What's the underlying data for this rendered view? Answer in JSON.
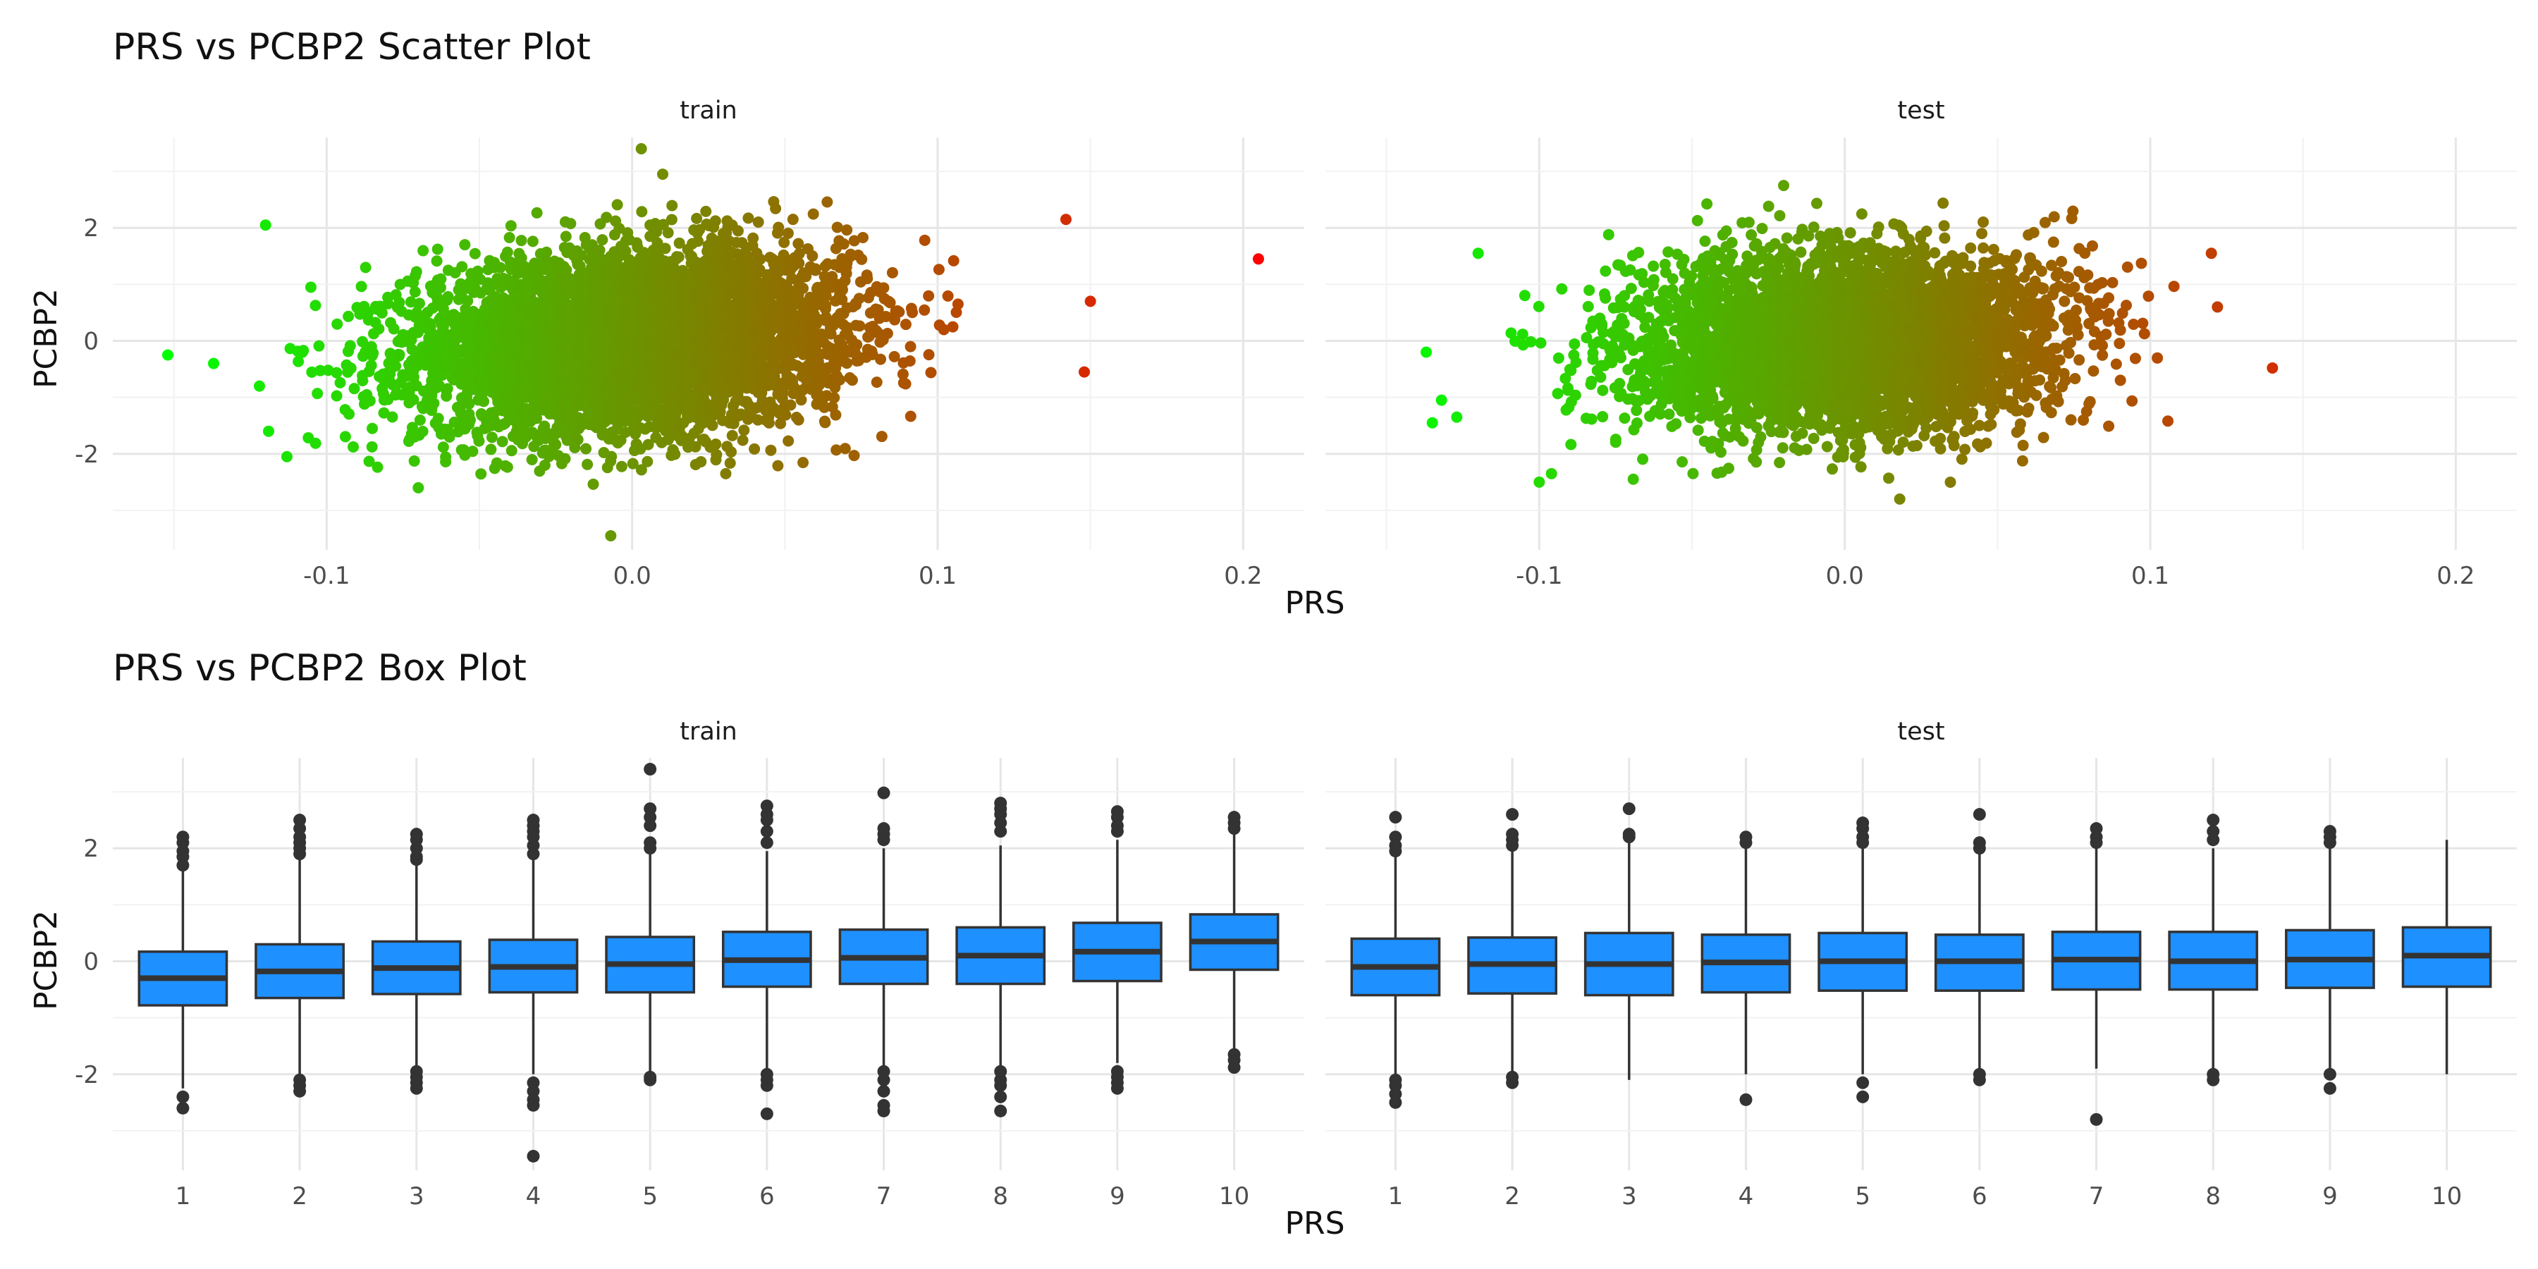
{
  "chart_data": [
    {
      "type": "scatter",
      "title": "PRS vs PCBP2 Scatter Plot",
      "xlabel": "PRS",
      "ylabel": "PCBP2",
      "xlim": [
        -0.17,
        0.22
      ],
      "ylim": [
        -3.7,
        3.6
      ],
      "x_ticks": [
        -0.1,
        0.0,
        0.1,
        0.2
      ],
      "x_tick_labels": [
        "-0.1",
        "0.0",
        "0.1",
        "0.2"
      ],
      "y_ticks": [
        -2,
        0,
        2
      ],
      "y_tick_labels": [
        "-2",
        "0",
        "2"
      ],
      "grid": true,
      "color_gradient": [
        "#00ff00",
        "#ff0000"
      ],
      "panels": [
        {
          "name": "train",
          "cloud": {
            "x_mean": 0.0,
            "x_sd": 0.035,
            "y_mean": 0.0,
            "y_sd": 0.8,
            "correlation": 0.15
          },
          "extreme_points": [
            {
              "x": -0.152,
              "y": -0.25
            },
            {
              "x": -0.137,
              "y": -0.4
            },
            {
              "x": -0.12,
              "y": 2.05
            },
            {
              "x": -0.122,
              "y": -0.8
            },
            {
              "x": -0.119,
              "y": -1.6
            },
            {
              "x": -0.113,
              "y": -2.05
            },
            {
              "x": 0.205,
              "y": 1.45
            },
            {
              "x": 0.15,
              "y": 0.7
            },
            {
              "x": 0.148,
              "y": -0.55
            },
            {
              "x": 0.142,
              "y": 2.15
            },
            {
              "x": 0.003,
              "y": 3.4
            },
            {
              "x": -0.007,
              "y": -3.45
            },
            {
              "x": 0.01,
              "y": 2.95
            },
            {
              "x": -0.07,
              "y": -2.6
            }
          ]
        },
        {
          "name": "test",
          "cloud": {
            "x_mean": 0.0,
            "x_sd": 0.035,
            "y_mean": 0.0,
            "y_sd": 0.8,
            "correlation": 0.05
          },
          "extreme_points": [
            {
              "x": -0.137,
              "y": -0.2
            },
            {
              "x": -0.12,
              "y": 1.55
            },
            {
              "x": -0.132,
              "y": -1.05
            },
            {
              "x": -0.135,
              "y": -1.45
            },
            {
              "x": -0.127,
              "y": -1.35
            },
            {
              "x": -0.1,
              "y": -2.5
            },
            {
              "x": -0.096,
              "y": -2.35
            },
            {
              "x": 0.14,
              "y": -0.48
            },
            {
              "x": 0.12,
              "y": 1.55
            },
            {
              "x": 0.122,
              "y": 0.6
            },
            {
              "x": 0.018,
              "y": -2.8
            },
            {
              "x": -0.02,
              "y": 2.75
            }
          ]
        }
      ]
    },
    {
      "type": "box",
      "title": "PRS vs PCBP2 Box Plot",
      "xlabel": "PRS",
      "ylabel": "PCBP2",
      "categories": [
        "1",
        "2",
        "3",
        "4",
        "5",
        "6",
        "7",
        "8",
        "9",
        "10"
      ],
      "ylim": [
        -3.7,
        3.6
      ],
      "y_ticks": [
        -2,
        0,
        2
      ],
      "y_tick_labels": [
        "-2",
        "0",
        "2"
      ],
      "grid": true,
      "box_fill": "#1e90ff",
      "line_color": "#333333",
      "panels": [
        {
          "name": "train",
          "boxes": [
            {
              "q1": -0.78,
              "median": -0.3,
              "q3": 0.17,
              "lower": -2.25,
              "upper": 1.6,
              "outliers": [
                2.2,
                2.1,
                1.95,
                1.85,
                1.7,
                -2.4,
                -2.6
              ]
            },
            {
              "q1": -0.65,
              "median": -0.18,
              "q3": 0.3,
              "lower": -2.0,
              "upper": 1.8,
              "outliers": [
                2.5,
                2.35,
                2.2,
                2.1,
                2.0,
                1.9,
                -2.1,
                -2.2,
                -2.3
              ]
            },
            {
              "q1": -0.58,
              "median": -0.12,
              "q3": 0.35,
              "lower": -1.9,
              "upper": 1.75,
              "outliers": [
                2.25,
                2.15,
                2.0,
                1.85,
                1.8,
                -1.95,
                -2.05,
                -2.15,
                -2.25
              ]
            },
            {
              "q1": -0.55,
              "median": -0.1,
              "q3": 0.38,
              "lower": -2.0,
              "upper": 1.8,
              "outliers": [
                2.5,
                2.4,
                2.3,
                2.2,
                2.05,
                1.9,
                -2.15,
                -2.3,
                -2.45,
                -2.55,
                -3.45
              ]
            },
            {
              "q1": -0.55,
              "median": -0.05,
              "q3": 0.43,
              "lower": -2.0,
              "upper": 1.9,
              "outliers": [
                3.4,
                2.7,
                2.55,
                2.4,
                2.1,
                2.0,
                -2.05,
                -2.1
              ]
            },
            {
              "q1": -0.45,
              "median": 0.02,
              "q3": 0.52,
              "lower": -1.9,
              "upper": 1.95,
              "outliers": [
                2.75,
                2.6,
                2.5,
                2.3,
                2.1,
                -2.0,
                -2.1,
                -2.2,
                -2.7
              ]
            },
            {
              "q1": -0.4,
              "median": 0.06,
              "q3": 0.56,
              "lower": -1.85,
              "upper": 2.0,
              "outliers": [
                2.98,
                2.35,
                2.25,
                2.15,
                -1.95,
                -2.1,
                -2.3,
                -2.55,
                -2.65
              ]
            },
            {
              "q1": -0.4,
              "median": 0.1,
              "q3": 0.6,
              "lower": -1.85,
              "upper": 2.05,
              "outliers": [
                2.8,
                2.7,
                2.6,
                2.45,
                2.3,
                -1.95,
                -2.1,
                -2.2,
                -2.4,
                -2.65
              ]
            },
            {
              "q1": -0.35,
              "median": 0.17,
              "q3": 0.68,
              "lower": -1.8,
              "upper": 2.15,
              "outliers": [
                2.65,
                2.55,
                2.4,
                2.3,
                -1.95,
                -2.05,
                -2.15,
                -2.25
              ]
            },
            {
              "q1": -0.15,
              "median": 0.35,
              "q3": 0.83,
              "lower": -1.55,
              "upper": 2.3,
              "outliers": [
                2.55,
                2.45,
                2.35,
                -1.65,
                -1.75,
                -1.88
              ]
            }
          ]
        },
        {
          "name": "test",
          "boxes": [
            {
              "q1": -0.6,
              "median": -0.1,
              "q3": 0.4,
              "lower": -2.0,
              "upper": 1.9,
              "outliers": [
                2.55,
                2.2,
                2.05,
                1.95,
                -2.1,
                -2.2,
                -2.35,
                -2.5
              ]
            },
            {
              "q1": -0.57,
              "median": -0.05,
              "q3": 0.42,
              "lower": -1.95,
              "upper": 1.95,
              "outliers": [
                2.6,
                2.25,
                2.15,
                2.05,
                -2.05,
                -2.15
              ]
            },
            {
              "q1": -0.6,
              "median": -0.05,
              "q3": 0.5,
              "lower": -2.1,
              "upper": 2.1,
              "outliers": [
                2.7,
                2.25,
                2.2
              ]
            },
            {
              "q1": -0.55,
              "median": -0.02,
              "q3": 0.47,
              "lower": -2.0,
              "upper": 2.05,
              "outliers": [
                2.2,
                2.1,
                -2.45
              ]
            },
            {
              "q1": -0.52,
              "median": 0.0,
              "q3": 0.5,
              "lower": -2.0,
              "upper": 2.0,
              "outliers": [
                2.45,
                2.35,
                2.2,
                2.1,
                -2.15,
                -2.4
              ]
            },
            {
              "q1": -0.52,
              "median": 0.0,
              "q3": 0.47,
              "lower": -1.95,
              "upper": 1.95,
              "outliers": [
                2.6,
                2.1,
                2.0,
                -2.0,
                -2.1
              ]
            },
            {
              "q1": -0.5,
              "median": 0.03,
              "q3": 0.52,
              "lower": -1.9,
              "upper": 2.0,
              "outliers": [
                2.35,
                2.2,
                2.1,
                -2.8
              ]
            },
            {
              "q1": -0.5,
              "median": 0.0,
              "q3": 0.52,
              "lower": -1.95,
              "upper": 2.0,
              "outliers": [
                2.5,
                2.3,
                2.15,
                -2.0,
                -2.1
              ]
            },
            {
              "q1": -0.47,
              "median": 0.03,
              "q3": 0.55,
              "lower": -1.95,
              "upper": 2.05,
              "outliers": [
                2.3,
                2.2,
                2.1,
                -2.0,
                -2.25
              ]
            },
            {
              "q1": -0.45,
              "median": 0.1,
              "q3": 0.6,
              "lower": -2.0,
              "upper": 2.15,
              "outliers": []
            }
          ]
        }
      ]
    }
  ]
}
